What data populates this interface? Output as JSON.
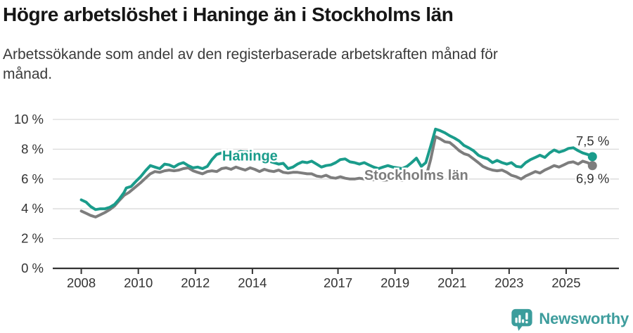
{
  "header": {
    "title": "Högre arbetslöshet i Haninge än i Stockholms län",
    "subtitle_line1": "Arbetssökande som andel av den registerbaserade arbetskraften månad för",
    "subtitle_line2": "månad."
  },
  "footer": {
    "brand": "Newsworthy",
    "brand_color": "#3e9d9d"
  },
  "chart_data": {
    "type": "line",
    "title": "Högre arbetslöshet i Haninge än i Stockholms län",
    "xlabel": "",
    "ylabel": "",
    "grid": "horizontal",
    "legend_position": "inline-labels",
    "xlim": [
      2007.0,
      2026.85
    ],
    "ylim": [
      0,
      10
    ],
    "x_tick_values": [
      2008,
      2010,
      2012,
      2014,
      2017,
      2019,
      2021,
      2023,
      2025
    ],
    "x_tick_labels": [
      "2008",
      "2010",
      "2012",
      "2014",
      "2017",
      "2019",
      "2021",
      "2023",
      "2025"
    ],
    "y_tick_values": [
      0,
      2,
      4,
      6,
      8,
      10
    ],
    "y_tick_labels": [
      "0 %",
      "2 %",
      "4 %",
      "6 %",
      "8 %",
      "10 %"
    ],
    "axis_color": "#333333",
    "grid_color": "#d9d9d9",
    "text_color": "#333333",
    "series": [
      {
        "id": "haninge",
        "name": "Haninge",
        "color": "#1a9c8b",
        "end_label": "7,5 %",
        "end_value": 7.5,
        "label_x": 2012.94,
        "label_y": 7.25,
        "end_label_offset": {
          "dx": 24,
          "dy": -16
        },
        "x": [
          2008.0,
          2008.17,
          2008.33,
          2008.5,
          2008.67,
          2008.83,
          2009.0,
          2009.17,
          2009.33,
          2009.5,
          2009.58,
          2009.75,
          2009.92,
          2010.08,
          2010.25,
          2010.42,
          2010.58,
          2010.75,
          2010.92,
          2011.08,
          2011.25,
          2011.42,
          2011.58,
          2011.75,
          2011.92,
          2012.08,
          2012.25,
          2012.42,
          2012.58,
          2012.75,
          2012.92,
          2013.08,
          2013.25,
          2013.42,
          2013.58,
          2013.75,
          2013.92,
          2014.08,
          2014.25,
          2014.42,
          2014.58,
          2014.75,
          2014.92,
          2015.08,
          2015.25,
          2015.42,
          2015.58,
          2015.75,
          2015.92,
          2016.08,
          2016.25,
          2016.42,
          2016.58,
          2016.75,
          2016.92,
          2017.08,
          2017.25,
          2017.42,
          2017.58,
          2017.75,
          2017.92,
          2018.08,
          2018.25,
          2018.42,
          2018.58,
          2018.75,
          2018.92,
          2019.08,
          2019.25,
          2019.42,
          2019.58,
          2019.75,
          2019.92,
          2020.08,
          2020.25,
          2020.42,
          2020.58,
          2020.75,
          2020.92,
          2021.08,
          2021.25,
          2021.42,
          2021.58,
          2021.75,
          2021.92,
          2022.08,
          2022.25,
          2022.42,
          2022.58,
          2022.75,
          2022.92,
          2023.08,
          2023.25,
          2023.42,
          2023.58,
          2023.75,
          2023.92,
          2024.08,
          2024.25,
          2024.42,
          2024.58,
          2024.75,
          2024.92,
          2025.08,
          2025.25,
          2025.42,
          2025.58,
          2025.75,
          2025.92
        ],
        "values": [
          4.6,
          4.45,
          4.15,
          3.95,
          4.0,
          4.0,
          4.1,
          4.3,
          4.65,
          5.1,
          5.4,
          5.5,
          5.85,
          6.15,
          6.55,
          6.9,
          6.8,
          6.7,
          7.0,
          6.95,
          6.8,
          7.0,
          7.1,
          6.9,
          6.75,
          6.8,
          6.7,
          6.85,
          7.3,
          7.65,
          7.75,
          7.6,
          7.7,
          7.75,
          7.85,
          7.8,
          7.85,
          7.7,
          7.55,
          7.35,
          7.2,
          7.1,
          7.0,
          7.05,
          6.7,
          6.8,
          7.0,
          7.15,
          7.1,
          7.2,
          7.0,
          6.8,
          6.9,
          6.95,
          7.1,
          7.3,
          7.35,
          7.15,
          7.1,
          7.0,
          7.1,
          6.95,
          6.8,
          6.7,
          6.8,
          6.9,
          6.8,
          6.75,
          6.7,
          6.85,
          7.1,
          7.4,
          6.85,
          7.1,
          8.2,
          9.35,
          9.25,
          9.1,
          8.9,
          8.75,
          8.55,
          8.25,
          8.1,
          7.9,
          7.6,
          7.45,
          7.35,
          7.1,
          7.25,
          7.1,
          7.0,
          7.1,
          6.85,
          6.8,
          7.1,
          7.3,
          7.45,
          7.6,
          7.45,
          7.75,
          7.95,
          7.8,
          7.9,
          8.05,
          8.1,
          7.9,
          7.75,
          7.65,
          7.5
        ]
      },
      {
        "id": "stockholms-lan",
        "name": "Stockholms län",
        "color": "#7d7d7d",
        "end_label": "6,9 %",
        "end_value": 6.9,
        "label_x": 2017.92,
        "label_y": 5.95,
        "end_label_offset": {
          "dx": 24,
          "dy": 25
        },
        "x": [
          2008.0,
          2008.17,
          2008.33,
          2008.5,
          2008.67,
          2008.83,
          2009.0,
          2009.17,
          2009.33,
          2009.5,
          2009.67,
          2009.83,
          2010.08,
          2010.25,
          2010.42,
          2010.58,
          2010.75,
          2010.92,
          2011.08,
          2011.25,
          2011.42,
          2011.58,
          2011.75,
          2011.92,
          2012.08,
          2012.25,
          2012.42,
          2012.58,
          2012.75,
          2012.92,
          2013.08,
          2013.25,
          2013.42,
          2013.58,
          2013.75,
          2013.92,
          2014.08,
          2014.25,
          2014.42,
          2014.58,
          2014.75,
          2014.92,
          2015.08,
          2015.25,
          2015.42,
          2015.58,
          2015.75,
          2015.92,
          2016.08,
          2016.25,
          2016.42,
          2016.58,
          2016.75,
          2016.92,
          2017.08,
          2017.25,
          2017.42,
          2017.58,
          2017.75,
          2017.92,
          2018.08,
          2018.25,
          2018.42,
          2018.58,
          2018.75,
          2018.92,
          2019.08,
          2019.25,
          2019.42,
          2019.58,
          2019.75,
          2019.92,
          2020.08,
          2020.25,
          2020.42,
          2020.58,
          2020.75,
          2020.92,
          2021.08,
          2021.25,
          2021.42,
          2021.58,
          2021.75,
          2021.92,
          2022.08,
          2022.25,
          2022.42,
          2022.58,
          2022.75,
          2022.92,
          2023.08,
          2023.25,
          2023.42,
          2023.58,
          2023.75,
          2023.92,
          2024.08,
          2024.25,
          2024.42,
          2024.58,
          2024.75,
          2024.92,
          2025.08,
          2025.25,
          2025.42,
          2025.58,
          2025.75,
          2025.92
        ],
        "values": [
          3.85,
          3.7,
          3.55,
          3.45,
          3.6,
          3.75,
          3.95,
          4.2,
          4.55,
          4.9,
          5.1,
          5.35,
          5.75,
          6.05,
          6.35,
          6.5,
          6.45,
          6.55,
          6.6,
          6.55,
          6.6,
          6.7,
          6.75,
          6.55,
          6.45,
          6.35,
          6.5,
          6.55,
          6.5,
          6.7,
          6.75,
          6.65,
          6.8,
          6.7,
          6.6,
          6.75,
          6.65,
          6.5,
          6.65,
          6.55,
          6.5,
          6.6,
          6.45,
          6.4,
          6.45,
          6.45,
          6.4,
          6.35,
          6.35,
          6.2,
          6.15,
          6.25,
          6.1,
          6.05,
          6.15,
          6.05,
          6.0,
          6.0,
          6.05,
          6.0,
          6.0,
          5.95,
          6.0,
          5.9,
          5.95,
          6.0,
          5.95,
          5.9,
          6.0,
          6.05,
          6.1,
          6.0,
          6.1,
          7.3,
          8.85,
          8.7,
          8.5,
          8.45,
          8.2,
          7.9,
          7.7,
          7.6,
          7.35,
          7.1,
          6.85,
          6.7,
          6.6,
          6.55,
          6.6,
          6.45,
          6.25,
          6.15,
          6.0,
          6.2,
          6.35,
          6.5,
          6.4,
          6.6,
          6.75,
          6.9,
          6.8,
          6.95,
          7.1,
          7.15,
          7.0,
          7.2,
          7.1,
          6.9
        ]
      }
    ]
  }
}
